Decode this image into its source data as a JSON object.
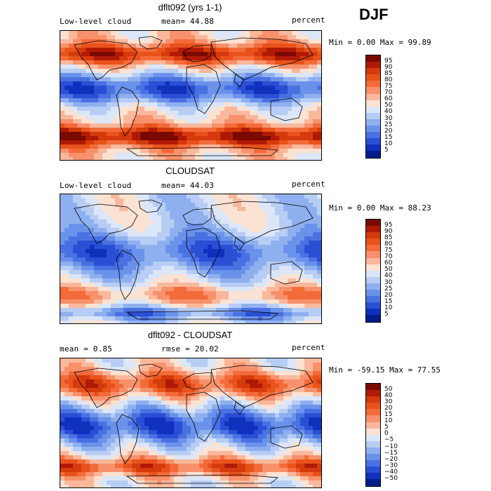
{
  "season": "DJF",
  "panels": [
    {
      "title": "dflt092 (yrs 1-1)",
      "left": "Low-level cloud",
      "center": "mean=  44.88",
      "right": "percent",
      "stats": "Min =    0.00 Max =  99.89",
      "levels": [
        "95",
        "90",
        "85",
        "80",
        "75",
        "70",
        "60",
        "50",
        "40",
        "30",
        "25",
        "20",
        "15",
        "10",
        "5"
      ],
      "colors": [
        "#7a0a00",
        "#b01a04",
        "#d43a0c",
        "#e9521b",
        "#f36b3a",
        "#f7916b",
        "#f9b89c",
        "#fbe2d2",
        "#dbe6f8",
        "#b7cdf4",
        "#8fb0ef",
        "#6b92ea",
        "#4a71e2",
        "#2a4fd4",
        "#1030be",
        "#001d8c"
      ]
    },
    {
      "title": "CLOUDSAT",
      "left": "Low-level cloud",
      "center": "mean=  44.03",
      "right": "percent",
      "stats": "Min =    0.00 Max =  88.23",
      "levels": [
        "95",
        "90",
        "85",
        "80",
        "75",
        "70",
        "60",
        "50",
        "40",
        "30",
        "25",
        "20",
        "15",
        "10",
        "5"
      ],
      "colors": [
        "#7a0a00",
        "#b01a04",
        "#d43a0c",
        "#e9521b",
        "#f36b3a",
        "#f7916b",
        "#f9b89c",
        "#fbe2d2",
        "#dbe6f8",
        "#b7cdf4",
        "#8fb0ef",
        "#6b92ea",
        "#4a71e2",
        "#2a4fd4",
        "#1030be",
        "#001d8c"
      ]
    },
    {
      "title": "dflt092 - CLOUDSAT",
      "left": "mean =    0.85",
      "center": "rmse =  20.02",
      "right": "percent",
      "stats": "Min = -59.15 Max =  77.55",
      "levels": [
        "50",
        "40",
        "30",
        "20",
        "15",
        "10",
        "5",
        "0",
        "−5",
        "−10",
        "−15",
        "−20",
        "−30",
        "−40",
        "−50"
      ],
      "colors": [
        "#7a0a00",
        "#b01a04",
        "#d43a0c",
        "#e9521b",
        "#f36b3a",
        "#f7916b",
        "#f9b89c",
        "#fbe2d2",
        "#dbe6f8",
        "#b7cdf4",
        "#8fb0ef",
        "#6b92ea",
        "#4a71e2",
        "#2a4fd4",
        "#1030be",
        "#001d8c"
      ]
    }
  ]
}
